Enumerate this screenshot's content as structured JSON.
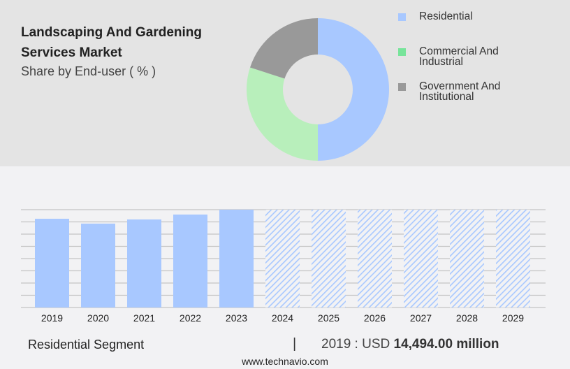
{
  "header": {
    "title": "Landscaping And Gardening Services Market",
    "subtitle": "Share by End-user ( % )"
  },
  "chart_data": [
    {
      "type": "pie",
      "variant": "donut",
      "legend_position": "right",
      "categories": [
        "Residential",
        "Commercial And Industrial",
        "Government And Institutional"
      ],
      "values": [
        50,
        30,
        20
      ],
      "colors": [
        "#a8c8ff",
        "#b8efbb",
        "#999999"
      ],
      "legend_colors": [
        "#a8c8ff",
        "#77e49a",
        "#999999"
      ]
    },
    {
      "type": "bar",
      "grid": true,
      "categories": [
        "2019",
        "2020",
        "2021",
        "2022",
        "2023",
        "2024",
        "2025",
        "2026",
        "2027",
        "2028",
        "2029"
      ],
      "values": [
        14494,
        13700,
        14380,
        15180,
        15980,
        null,
        null,
        null,
        null,
        null,
        null
      ],
      "forecast_from": "2024",
      "color": "#a8c8ff"
    }
  ],
  "footer": {
    "segment": "Residential Segment",
    "separator": "|",
    "year_label": "2019 : USD",
    "value": "14,494.00 million",
    "site": "www.technavio.com"
  }
}
